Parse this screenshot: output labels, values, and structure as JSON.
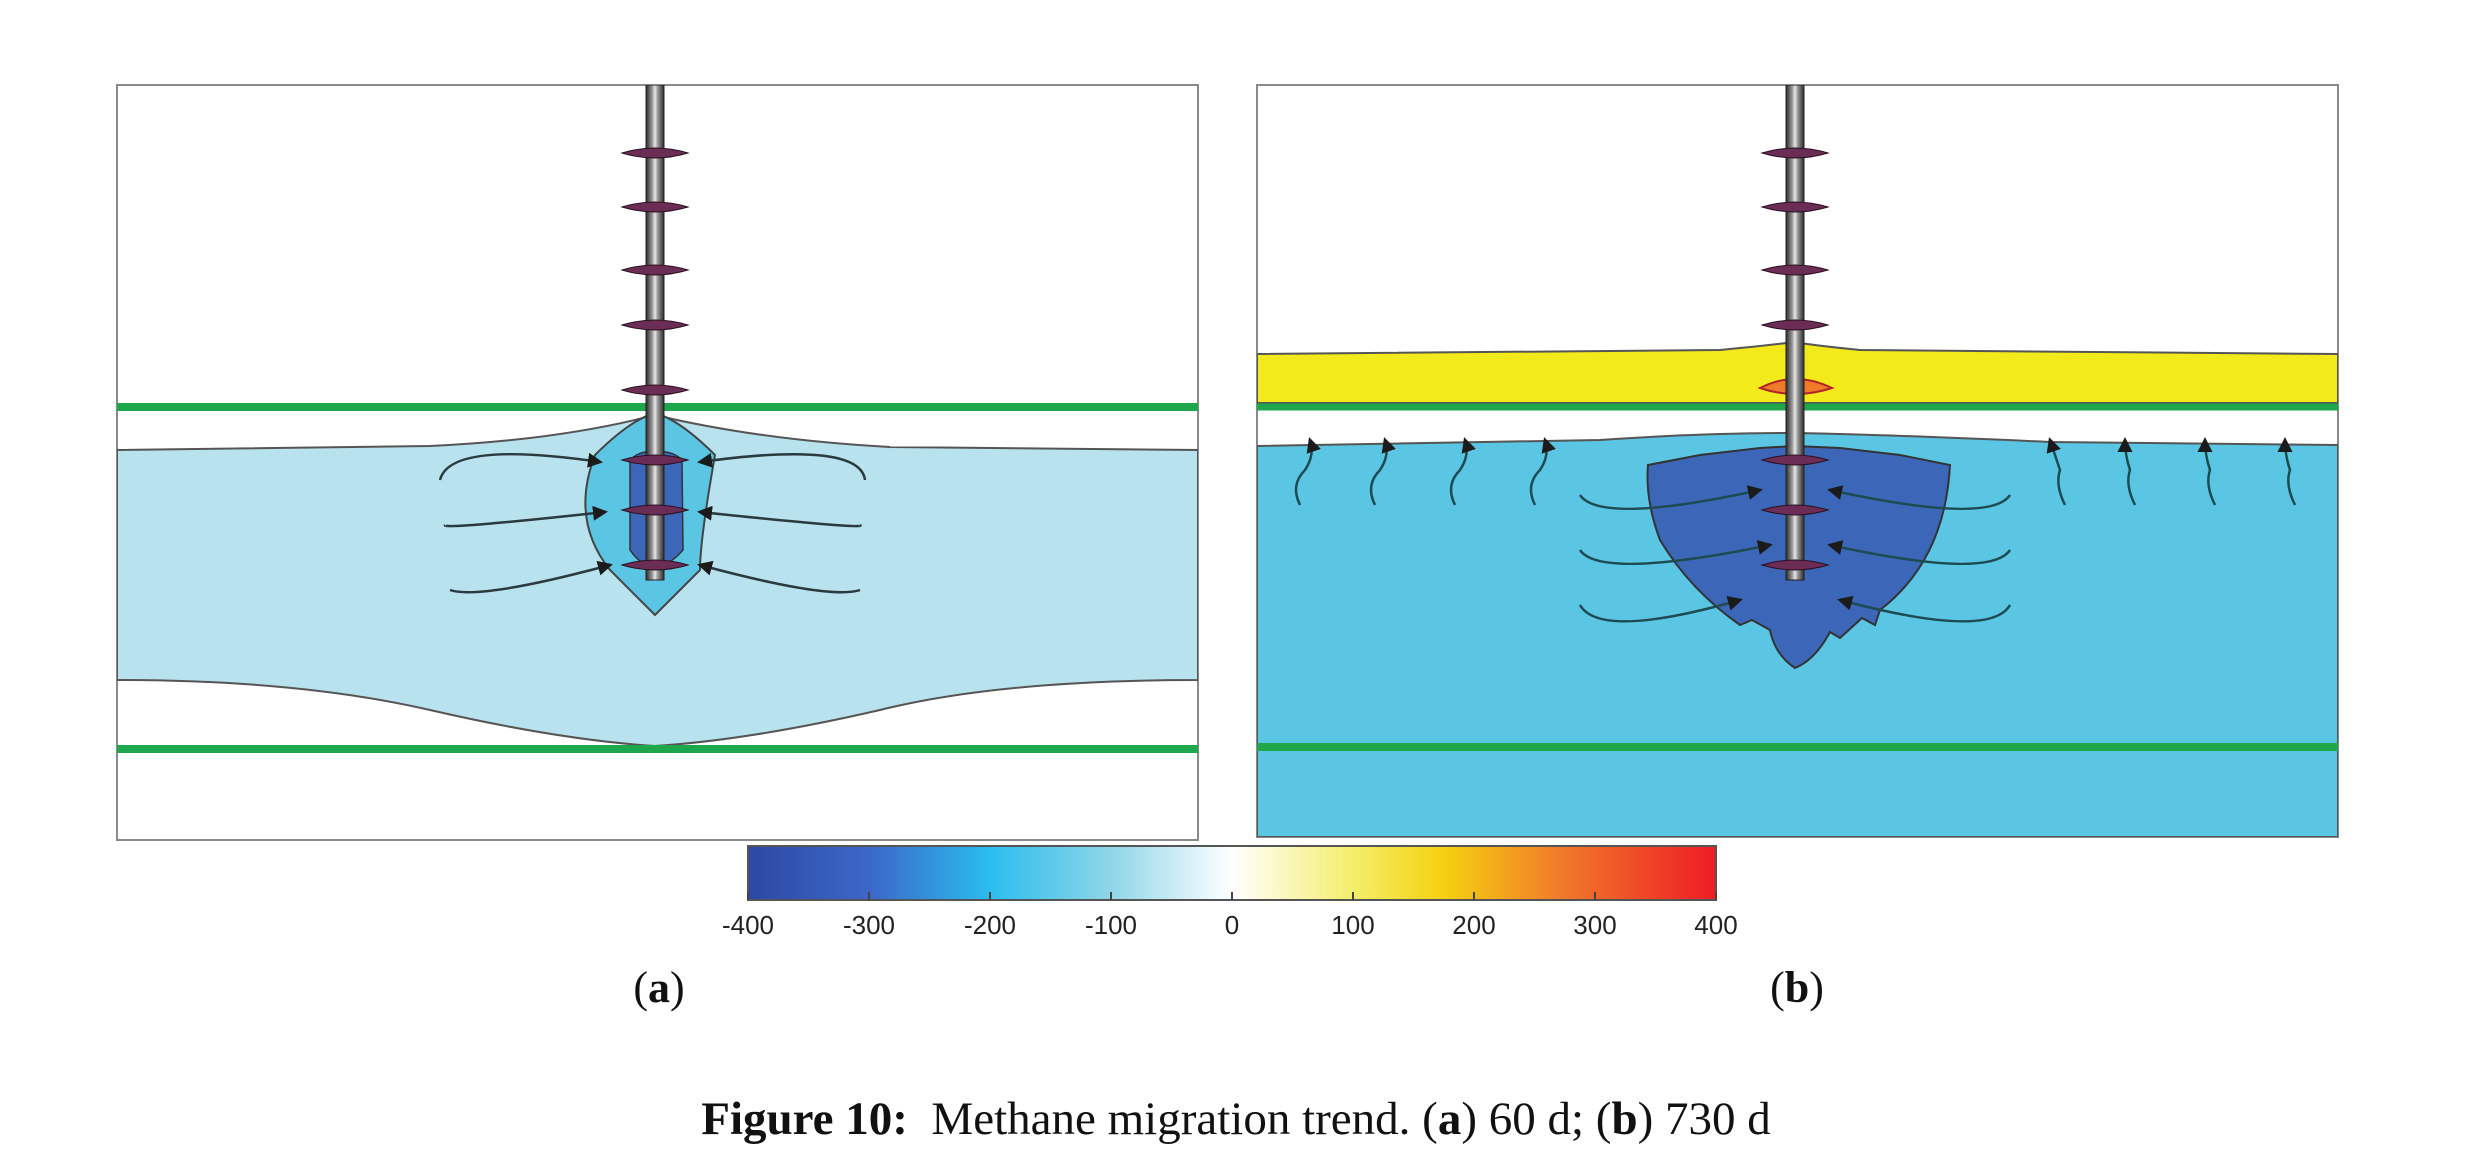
{
  "panels": [
    {
      "id": "a",
      "label": "a",
      "time": "60 d"
    },
    {
      "id": "b",
      "label": "b",
      "time": "730 d"
    }
  ],
  "colorbar": {
    "ticks": [
      "-400",
      "-300",
      "-200",
      "-100",
      "0",
      "100",
      "200",
      "300",
      "400"
    ],
    "range": [
      -400,
      400
    ]
  },
  "colors": {
    "light_blue": "#b8e2ed",
    "mid_blue": "#5bc6e4",
    "dark_blue": "#3c67b8",
    "yellow": "#f3ea1b",
    "green_line": "#1ea84b",
    "orange": "#f07a2a"
  },
  "caption": {
    "figure_label": "Figure 10:",
    "text_prefix": "Methane migration trend. (",
    "a_label": "a",
    "a_text": ") 60 d; (",
    "b_label": "b",
    "b_text": ") 730 d"
  }
}
